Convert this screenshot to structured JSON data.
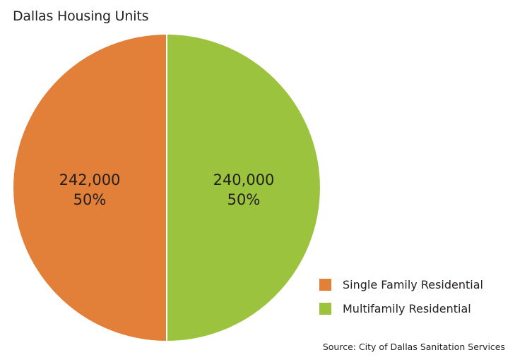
{
  "chart_data": {
    "type": "pie",
    "title": "Dallas Housing Units",
    "slices": [
      {
        "name": "Single Family Residential",
        "value": 242000,
        "value_label": "242,000",
        "percent_label": "50%",
        "color": "#e2803a"
      },
      {
        "name": "Multifamily Residential",
        "value": 240000,
        "value_label": "240,000",
        "percent_label": "50%",
        "color": "#9cc33e"
      }
    ],
    "legend_position": "bottom-right",
    "source": "Source: City of Dallas Sanitation Services"
  }
}
